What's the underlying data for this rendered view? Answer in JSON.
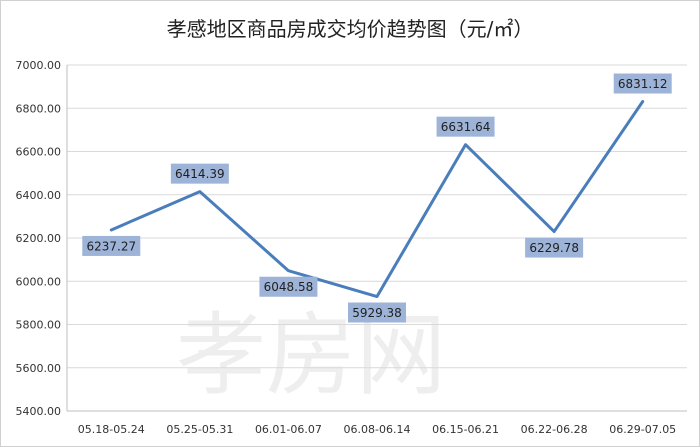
{
  "chart_data": {
    "type": "line",
    "title": "孝感地区商品房成交均价趋势图（元/㎡）",
    "xlabel": "",
    "ylabel": "",
    "categories": [
      "05.18-05.24",
      "05.25-05.31",
      "06.01-06.07",
      "06.08-06.14",
      "06.15-06.21",
      "06.22-06.28",
      "06.29-07.05"
    ],
    "series": [
      {
        "values": [
          6237.27,
          6414.39,
          6048.58,
          5929.38,
          6631.64,
          6229.78,
          6831.12
        ],
        "data_labels": [
          "6237.27",
          "6414.39",
          "6048.58",
          "5929.38",
          "6631.64",
          "6229.78",
          "6831.12"
        ]
      }
    ],
    "ylim": [
      5400,
      7000
    ],
    "y_ticks": [
      "5400.00",
      "5600.00",
      "5800.00",
      "6000.00",
      "6200.00",
      "6400.00",
      "6600.00",
      "6800.00",
      "7000.00"
    ],
    "grid": true,
    "legend": "none",
    "colors": {
      "line": "#4a7ebb",
      "label_box": "#9db4d8"
    }
  },
  "watermark": "孝房网"
}
